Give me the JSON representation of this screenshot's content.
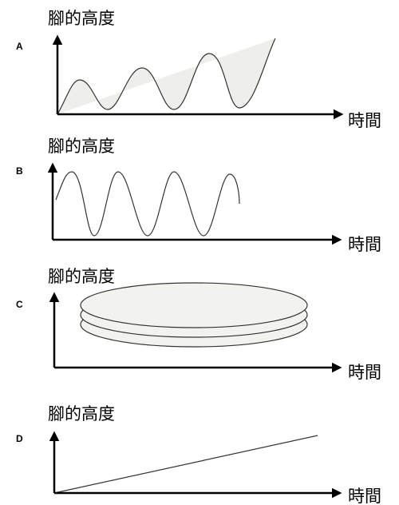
{
  "panels": [
    {
      "letter": "A",
      "y_label": "腳的高度",
      "x_label": "時間"
    },
    {
      "letter": "B",
      "y_label": "腳的高度",
      "x_label": "時間"
    },
    {
      "letter": "C",
      "y_label": "腳的高度",
      "x_label": "時間"
    },
    {
      "letter": "D",
      "y_label": "腳的高度",
      "x_label": "時間"
    }
  ]
}
